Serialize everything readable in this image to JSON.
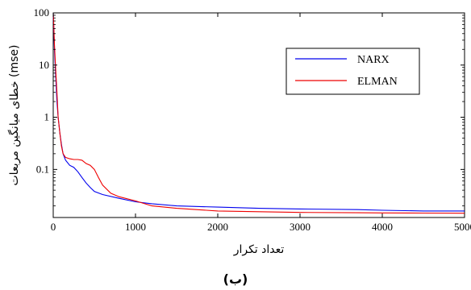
{
  "chart_data": {
    "type": "line",
    "title": "",
    "xlabel": "تعداد تکرار",
    "ylabel": "خطای میانگین مربعات (mse)",
    "caption": "(ب)",
    "xlim": [
      0,
      5000
    ],
    "ylim": [
      0.012,
      100
    ],
    "y_scale": "log",
    "grid": false,
    "legend_position": "top-right",
    "x_ticks": [
      0,
      1000,
      2000,
      3000,
      4000,
      5000
    ],
    "x_tick_labels": [
      "0",
      "1000",
      "2000",
      "3000",
      "4000",
      "5000"
    ],
    "y_ticks": [
      0.1,
      1,
      10,
      100
    ],
    "y_tick_labels": [
      "0.1",
      "1",
      "10",
      "100"
    ],
    "series": [
      {
        "name": "NARX",
        "color": "#0000ee",
        "points": [
          [
            0,
            100
          ],
          [
            5,
            60
          ],
          [
            15,
            20
          ],
          [
            30,
            6
          ],
          [
            45,
            2
          ],
          [
            60,
            1
          ],
          [
            80,
            0.5
          ],
          [
            100,
            0.3
          ],
          [
            120,
            0.2
          ],
          [
            150,
            0.15
          ],
          [
            200,
            0.12
          ],
          [
            250,
            0.11
          ],
          [
            300,
            0.09
          ],
          [
            350,
            0.07
          ],
          [
            400,
            0.055
          ],
          [
            450,
            0.045
          ],
          [
            500,
            0.038
          ],
          [
            600,
            0.033
          ],
          [
            800,
            0.028
          ],
          [
            1000,
            0.024
          ],
          [
            1200,
            0.022
          ],
          [
            1500,
            0.02
          ],
          [
            2000,
            0.019
          ],
          [
            2500,
            0.018
          ],
          [
            3000,
            0.0175
          ],
          [
            3700,
            0.017
          ],
          [
            4000,
            0.0165
          ],
          [
            4500,
            0.016
          ],
          [
            5000,
            0.016
          ]
        ]
      },
      {
        "name": "ELMAN",
        "color": "#ee0000",
        "points": [
          [
            0,
            100
          ],
          [
            5,
            70
          ],
          [
            15,
            25
          ],
          [
            30,
            8
          ],
          [
            45,
            3
          ],
          [
            60,
            1
          ],
          [
            80,
            0.5
          ],
          [
            100,
            0.28
          ],
          [
            120,
            0.2
          ],
          [
            150,
            0.17
          ],
          [
            200,
            0.16
          ],
          [
            250,
            0.155
          ],
          [
            300,
            0.155
          ],
          [
            350,
            0.15
          ],
          [
            400,
            0.13
          ],
          [
            450,
            0.12
          ],
          [
            500,
            0.1
          ],
          [
            550,
            0.07
          ],
          [
            600,
            0.05
          ],
          [
            700,
            0.035
          ],
          [
            800,
            0.03
          ],
          [
            1000,
            0.025
          ],
          [
            1200,
            0.02
          ],
          [
            1500,
            0.018
          ],
          [
            2000,
            0.016
          ],
          [
            2500,
            0.0155
          ],
          [
            3000,
            0.015
          ],
          [
            3700,
            0.0148
          ],
          [
            4000,
            0.0147
          ],
          [
            4500,
            0.0146
          ],
          [
            5000,
            0.0145
          ]
        ]
      }
    ]
  }
}
